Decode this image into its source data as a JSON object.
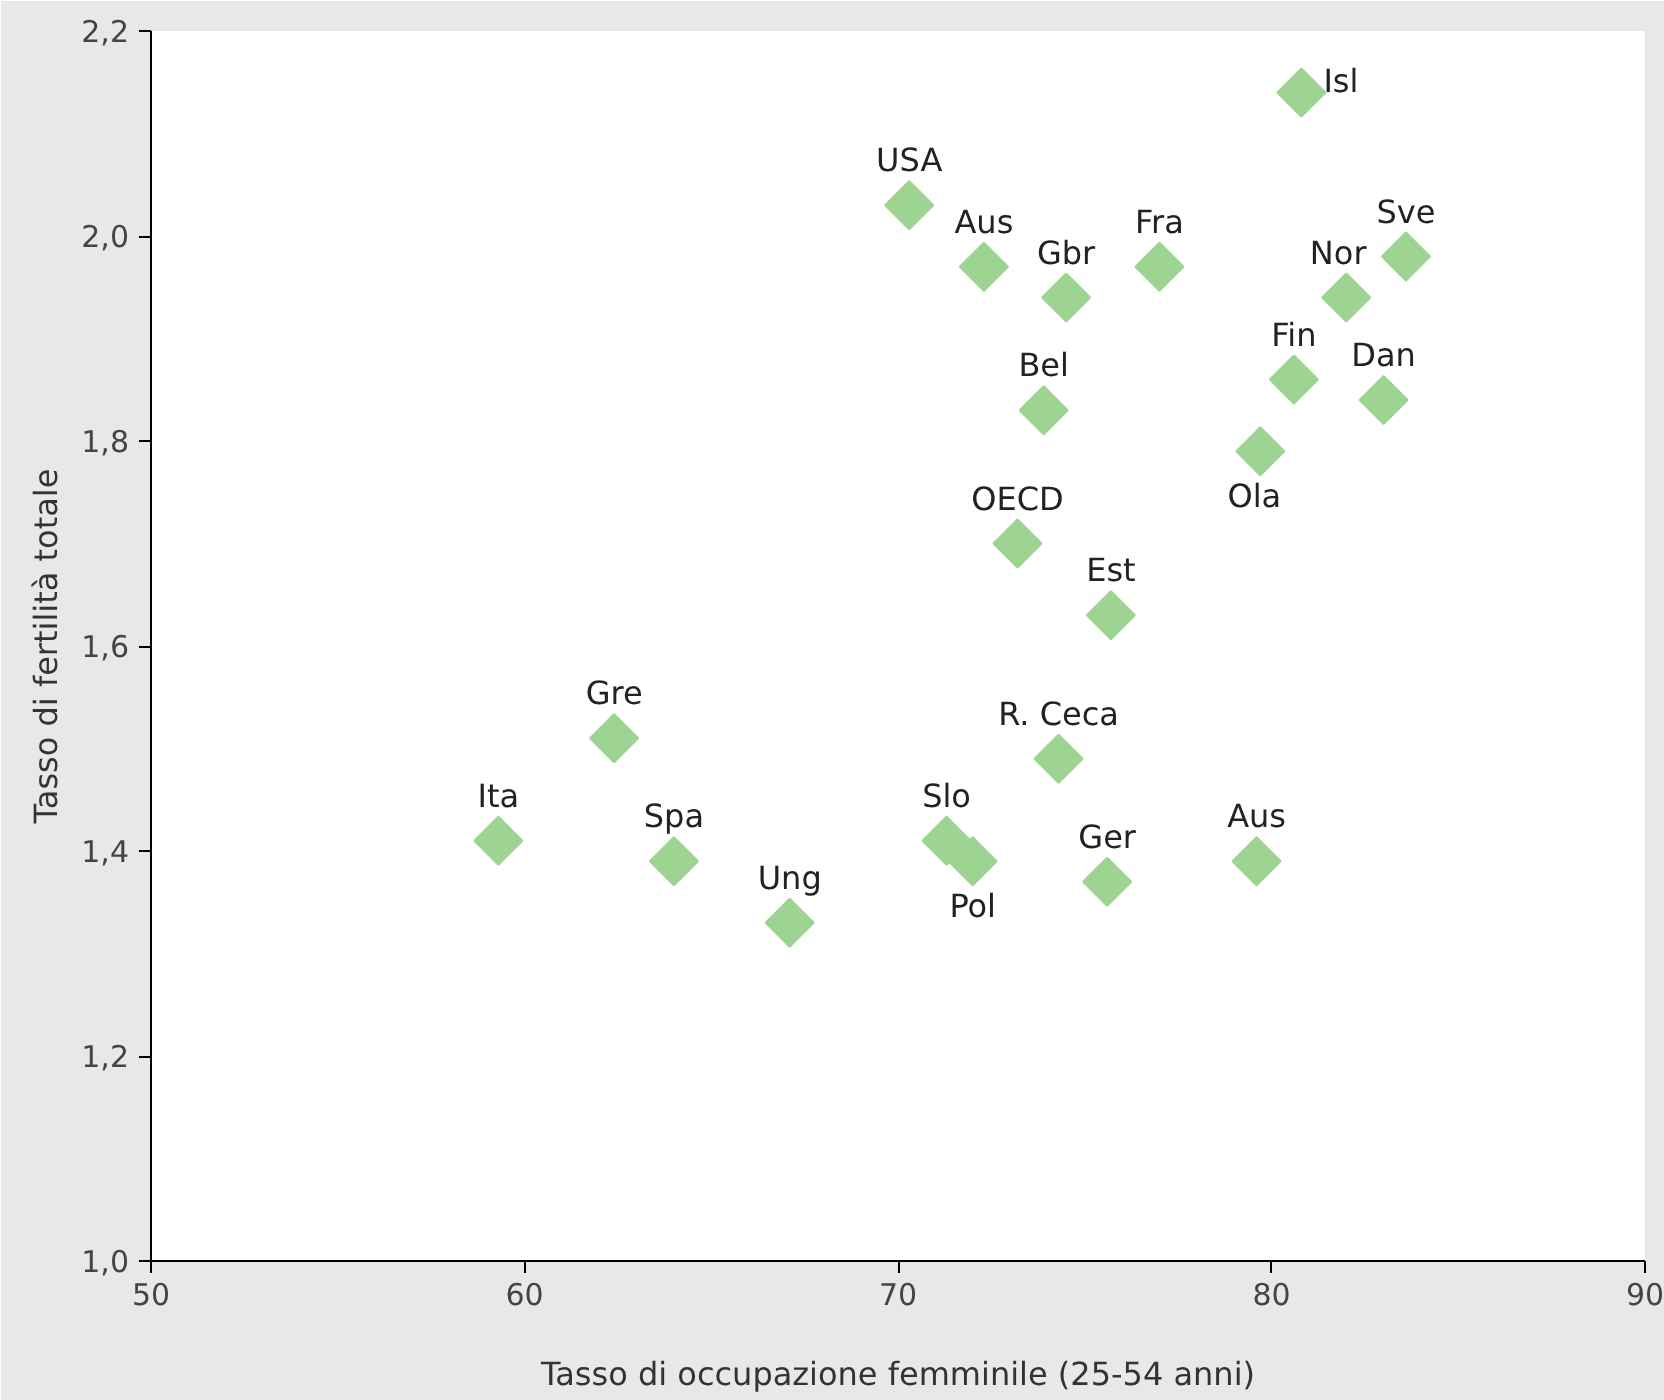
{
  "chart_data": {
    "type": "scatter",
    "xlabel": "Tasso di occupazione femminile (25-54 anni)",
    "ylabel": "Tasso di fertilità totale",
    "x": [
      59.3,
      62.4,
      64.0,
      67.1,
      71.3,
      72.0,
      74.3,
      75.6,
      79.6,
      73.2,
      75.7,
      73.9,
      70.3,
      72.3,
      74.5,
      77.0,
      80.8,
      82.0,
      83.6,
      80.6,
      83.0,
      79.7
    ],
    "series": [
      {
        "color": "#9dd491",
        "values": [
          1.41,
          1.51,
          1.39,
          1.33,
          1.41,
          1.39,
          1.49,
          1.37,
          1.39,
          1.7,
          1.63,
          1.83,
          2.03,
          1.97,
          1.94,
          1.97,
          2.14,
          1.94,
          1.98,
          1.86,
          1.84,
          1.79
        ]
      }
    ],
    "annotations": [
      {
        "text": "Ita",
        "x": 59.3,
        "y": 1.41
      },
      {
        "text": "Gre",
        "x": 62.4,
        "y": 1.51
      },
      {
        "text": "Spa",
        "x": 64.0,
        "y": 1.39
      },
      {
        "text": "Ung",
        "x": 67.1,
        "y": 1.33
      },
      {
        "text": "Slo",
        "x": 71.3,
        "y": 1.41
      },
      {
        "text": "Pol",
        "x": 72.0,
        "y": 1.39
      },
      {
        "text": "R. Ceca",
        "x": 74.3,
        "y": 1.49
      },
      {
        "text": "Ger",
        "x": 75.6,
        "y": 1.37
      },
      {
        "text": "Aus",
        "x": 79.6,
        "y": 1.39
      },
      {
        "text": "OECD",
        "x": 73.2,
        "y": 1.7
      },
      {
        "text": "Est",
        "x": 75.7,
        "y": 1.63
      },
      {
        "text": "Bel",
        "x": 73.9,
        "y": 1.83
      },
      {
        "text": "USA",
        "x": 70.3,
        "y": 2.03
      },
      {
        "text": "Aus",
        "x": 72.3,
        "y": 1.97
      },
      {
        "text": "Gbr",
        "x": 74.5,
        "y": 1.94
      },
      {
        "text": "Fra",
        "x": 77.0,
        "y": 1.97
      },
      {
        "text": "Isl",
        "x": 80.8,
        "y": 2.14
      },
      {
        "text": "Nor",
        "x": 82.0,
        "y": 1.94
      },
      {
        "text": "Sve",
        "x": 83.6,
        "y": 1.98
      },
      {
        "text": "Fin",
        "x": 80.6,
        "y": 1.86
      },
      {
        "text": "Dan",
        "x": 83.0,
        "y": 1.84
      },
      {
        "text": "Ola",
        "x": 79.7,
        "y": 1.79
      }
    ],
    "xlim": [
      50,
      90
    ],
    "xticks": [
      50,
      60,
      70,
      80,
      90
    ],
    "ylim": [
      1.0,
      2.2
    ],
    "yticks": [
      {
        "value": 1.0,
        "label": "1,0"
      },
      {
        "value": 1.2,
        "label": "1,2"
      },
      {
        "value": 1.4,
        "label": "1,4"
      },
      {
        "value": 1.6,
        "label": "1,6"
      },
      {
        "value": 1.8,
        "label": "1,8"
      },
      {
        "value": 2.0,
        "label": "2,0"
      },
      {
        "value": 2.2,
        "label": "2,2"
      }
    ],
    "marker": "diamond",
    "grid": false
  }
}
